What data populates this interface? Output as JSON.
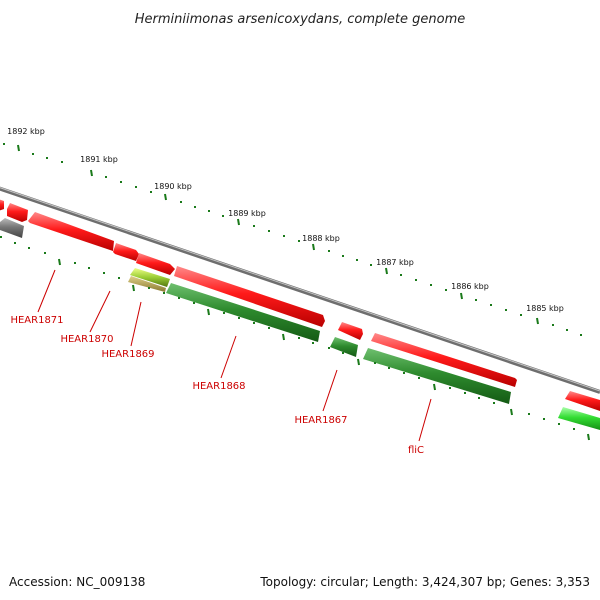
{
  "title": "Herminiimonas arsenicoxydans, complete genome",
  "footer": {
    "accession": "Accession: NC_009138",
    "summary": "Topology: circular; Length: 3,424,307 bp; Genes: 3,353"
  },
  "ticks": [
    "1892 kbp",
    "1891 kbp",
    "1890 kbp",
    "1889 kbp",
    "1888 kbp",
    "1887 kbp",
    "1886 kbp",
    "1885 kbp"
  ],
  "gene_labels": [
    "HEAR1871",
    "HEAR1870",
    "HEAR1869",
    "HEAR1868",
    "HEAR1867",
    "fliC"
  ],
  "colors": {
    "forward_gene": "#ee1111",
    "reverse_gene": "#2e8b2e",
    "highlight_gene": "#33dd33",
    "pseudo_gene": "#777777",
    "backbone": "#888888",
    "tick": "#1a7a1a",
    "label": "#cc0000"
  }
}
